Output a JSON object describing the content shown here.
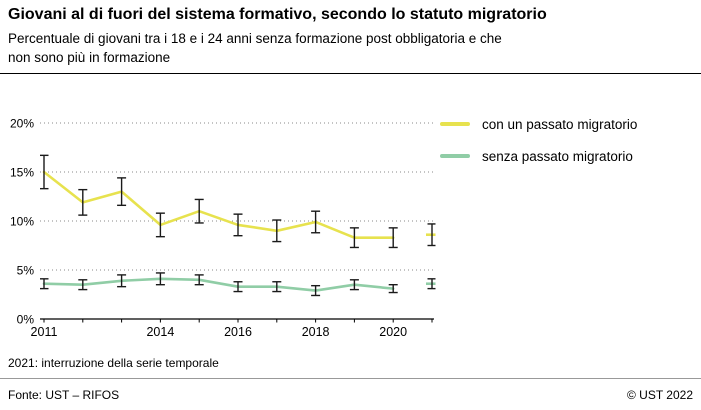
{
  "header": {
    "title": "Giovani al di fuori del sistema formativo, secondo lo statuto migratorio",
    "subtitle_line1": "Percentuale di giovani tra i 18 e i 24 anni senza formazione post obbligatoria e che",
    "subtitle_line2": "non sono più in formazione"
  },
  "chart_data": {
    "type": "line",
    "x": [
      2011,
      2012,
      2013,
      2014,
      2015,
      2016,
      2017,
      2018,
      2019,
      2020,
      2021
    ],
    "series": [
      {
        "name": "con un passato migratorio",
        "color": "#e7e24e",
        "values": [
          15.0,
          11.9,
          13.0,
          9.6,
          11.0,
          9.6,
          9.0,
          9.9,
          8.3,
          8.3,
          8.6
        ],
        "err": [
          1.7,
          1.3,
          1.4,
          1.2,
          1.2,
          1.1,
          1.1,
          1.1,
          1.0,
          1.0,
          1.1
        ]
      },
      {
        "name": "senza passato migratorio",
        "color": "#90cda6",
        "values": [
          3.6,
          3.5,
          3.9,
          4.1,
          4.0,
          3.3,
          3.3,
          2.9,
          3.5,
          3.1,
          3.6
        ],
        "err": [
          0.5,
          0.5,
          0.6,
          0.6,
          0.5,
          0.5,
          0.5,
          0.5,
          0.5,
          0.4,
          0.5
        ]
      }
    ],
    "break_after": 2020,
    "error_bars": true,
    "ylim": [
      0,
      20
    ],
    "yticks": [
      0,
      5,
      10,
      15,
      20
    ],
    "ytick_labels": [
      "0%",
      "5%",
      "10%",
      "15%",
      "20%"
    ],
    "xtick_years": [
      2011,
      2014,
      2016,
      2018,
      2020
    ],
    "xtick_labels": [
      "2011",
      "2014",
      "2016",
      "2018",
      "2020"
    ],
    "grid": "dotted-horizontal",
    "legend_position": "right"
  },
  "note": "2021: interruzione della serie temporale",
  "footer": {
    "source": "Fonte: UST – RIFOS",
    "copyright": "© UST 2022"
  }
}
